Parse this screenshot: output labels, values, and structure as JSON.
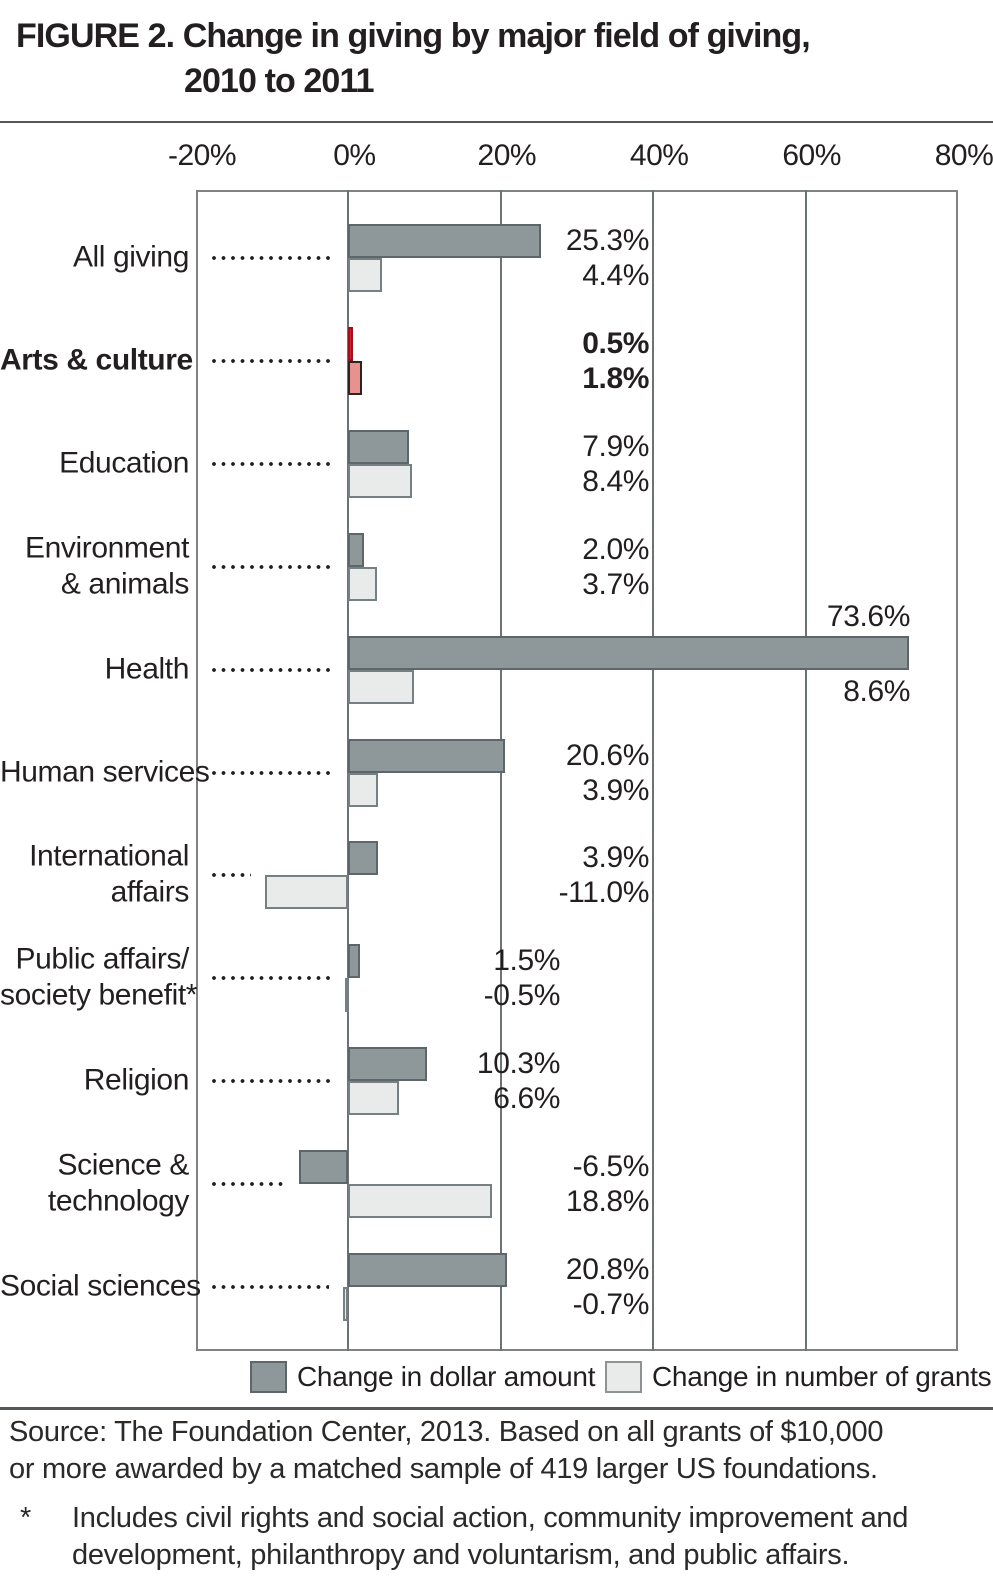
{
  "title": {
    "line1": "FIGURE 2. Change in giving by major field of giving,",
    "line2": "2010 to 2011"
  },
  "chart_data": {
    "type": "bar",
    "orientation": "horizontal",
    "title": "FIGURE 2. Change in giving by major field of giving, 2010 to 2011",
    "x_axis": {
      "unit": "%",
      "min": -20,
      "max": 80,
      "ticks": [
        -20,
        0,
        20,
        40,
        60,
        80
      ],
      "tick_labels": [
        "-20%",
        "0%",
        "20%",
        "40%",
        "60%",
        "80%"
      ],
      "gridlines": [
        0,
        20,
        40,
        60
      ],
      "grid": true
    },
    "series": [
      {
        "name": "Change in dollar amount",
        "key": "dollar"
      },
      {
        "name": "Change in number of grants",
        "key": "grants"
      }
    ],
    "legend_position": "bottom",
    "rows": [
      {
        "category": "All giving",
        "category_lines": [
          "All giving"
        ],
        "values": {
          "dollar": 25.3,
          "grants": 4.4
        },
        "labels": {
          "dollar": "25.3%",
          "grants": "4.4%"
        },
        "emphasis": false,
        "anchor": "default",
        "spread": false
      },
      {
        "category": "Arts & culture",
        "category_lines": [
          "Arts & culture"
        ],
        "values": {
          "dollar": 0.5,
          "grants": 1.8
        },
        "labels": {
          "dollar": "0.5%",
          "grants": "1.8%"
        },
        "emphasis": true,
        "anchor": "default",
        "spread": false
      },
      {
        "category": "Education",
        "category_lines": [
          "Education"
        ],
        "values": {
          "dollar": 7.9,
          "grants": 8.4
        },
        "labels": {
          "dollar": "7.9%",
          "grants": "8.4%"
        },
        "emphasis": false,
        "anchor": "default",
        "spread": false
      },
      {
        "category": "Environment & animals",
        "category_lines": [
          "Environment",
          "& animals"
        ],
        "values": {
          "dollar": 2.0,
          "grants": 3.7
        },
        "labels": {
          "dollar": "2.0%",
          "grants": "3.7%"
        },
        "emphasis": false,
        "anchor": "default",
        "spread": false
      },
      {
        "category": "Health",
        "category_lines": [
          "Health"
        ],
        "values": {
          "dollar": 73.6,
          "grants": 8.6
        },
        "labels": {
          "dollar": "73.6%",
          "grants": "8.6%"
        },
        "emphasis": false,
        "anchor": "far",
        "spread": true
      },
      {
        "category": "Human services",
        "category_lines": [
          "Human services"
        ],
        "values": {
          "dollar": 20.6,
          "grants": 3.9
        },
        "labels": {
          "dollar": "20.6%",
          "grants": "3.9%"
        },
        "emphasis": false,
        "anchor": "default",
        "spread": false
      },
      {
        "category": "International affairs",
        "category_lines": [
          "International",
          "affairs"
        ],
        "values": {
          "dollar": 3.9,
          "grants": -11.0
        },
        "labels": {
          "dollar": "3.9%",
          "grants": "-11.0%"
        },
        "emphasis": false,
        "anchor": "default",
        "spread": false
      },
      {
        "category": "Public affairs/society benefit*",
        "category_lines": [
          "Public affairs/",
          "society benefit*"
        ],
        "values": {
          "dollar": 1.5,
          "grants": -0.5
        },
        "labels": {
          "dollar": "1.5%",
          "grants": "-0.5%"
        },
        "emphasis": false,
        "anchor": "near",
        "spread": false
      },
      {
        "category": "Religion",
        "category_lines": [
          "Religion"
        ],
        "values": {
          "dollar": 10.3,
          "grants": 6.6
        },
        "labels": {
          "dollar": "10.3%",
          "grants": "6.6%"
        },
        "emphasis": false,
        "anchor": "near",
        "spread": false
      },
      {
        "category": "Science & technology",
        "category_lines": [
          "Science &",
          "technology"
        ],
        "values": {
          "dollar": -6.5,
          "grants": 18.8
        },
        "labels": {
          "dollar": "-6.5%",
          "grants": "18.8%"
        },
        "emphasis": false,
        "anchor": "default",
        "spread": false
      },
      {
        "category": "Social sciences",
        "category_lines": [
          "Social sciences"
        ],
        "values": {
          "dollar": 20.8,
          "grants": -0.7
        },
        "labels": {
          "dollar": "20.8%",
          "grants": "-0.7%"
        },
        "emphasis": false,
        "anchor": "default",
        "spread": false
      }
    ],
    "colors": {
      "dollar": "#8e979a",
      "dollar_border": "#5d666a",
      "grants": "#e9ebeb",
      "grants_border": "#767f82",
      "highlight_dollar": "#d6212f",
      "highlight_dollar_border": "#981320",
      "highlight_grants": "#e7928f",
      "highlight_grants_border": "#2a2422",
      "grid": "#6d7274",
      "text": "#231f20"
    }
  },
  "legend": {
    "items": [
      {
        "label": "Change in dollar amount",
        "swatch": "dark-gray-square"
      },
      {
        "label": "Change in number of grants",
        "swatch": "light-gray-square"
      }
    ]
  },
  "source": "Source: The Foundation Center, 2013. Based on all grants of $10,000 or more awarded by a matched sample of 419 larger US foundations.",
  "footnote": {
    "marker": "*",
    "text": "Includes civil rights and social action, community improvement and development, philanthropy and voluntarism, and public affairs."
  }
}
